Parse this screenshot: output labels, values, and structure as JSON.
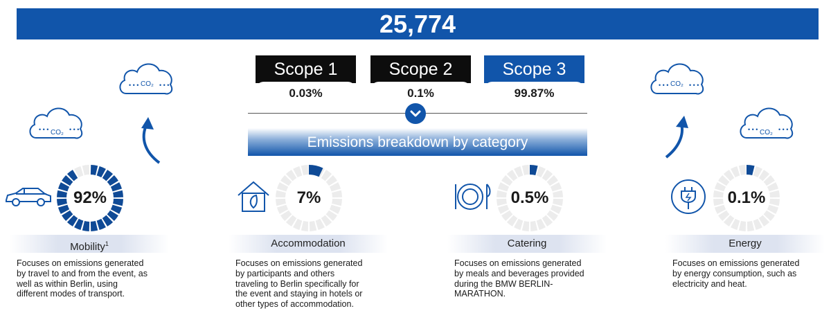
{
  "total": "25,774",
  "scopes": [
    {
      "label": "Scope 1",
      "value": "0.03%"
    },
    {
      "label": "Scope 2",
      "value": "0.1%"
    },
    {
      "label": "Scope 3",
      "value": "99.87%"
    }
  ],
  "breakdown_title": "Emissions breakdown by category",
  "co2_label": "CO₂",
  "chart_data": {
    "type": "pie",
    "categories": [
      "Mobility",
      "Accommodation",
      "Catering",
      "Energy"
    ],
    "values": [
      92,
      7,
      0.5,
      0.1
    ],
    "value_labels": [
      "92%",
      "7%",
      "0.5%",
      "0.1%"
    ],
    "footnote_marker": "1",
    "descriptions": [
      [
        "Focuses on emissions generated",
        "by travel to and from the event, as",
        "well as within Berlin, using",
        "different modes of transport."
      ],
      [
        "Focuses on emissions generated",
        "by participants and others",
        "traveling to Berlin specifically for",
        "the event and staying in hotels or",
        "other types of accommodation."
      ],
      [
        "Focuses on emissions generated",
        "by meals and beverages provided",
        "during the BMW BERLIN-",
        "MARATHON."
      ],
      [
        "Focuses on emissions generated",
        "by energy consumption, such as",
        "electricity and heat."
      ]
    ],
    "colors": {
      "fill": "#0f4a96",
      "track": "#ececec",
      "accent": "#1155aa"
    }
  }
}
